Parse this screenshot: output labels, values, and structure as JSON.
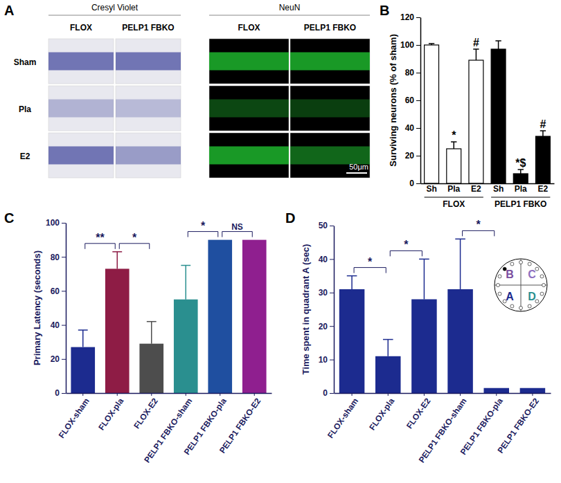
{
  "panel_labels": [
    "A",
    "B",
    "C",
    "D"
  ],
  "panel_a": {
    "headers": [
      "Cresyl Violet",
      "NeuN"
    ],
    "columns": [
      "FLOX",
      "PELP1 FBKO"
    ],
    "rows": [
      "Sham",
      "Pla",
      "E2"
    ],
    "scale_bar": "50μm"
  },
  "chart_data": [
    {
      "type": "bar",
      "y_label": "Surviving neurons (% of sham)",
      "categories": [
        "Sh",
        "Pla",
        "E2",
        "Sh",
        "Pla",
        "E2"
      ],
      "values": [
        100,
        25,
        89,
        97,
        7,
        34
      ],
      "errors": [
        1,
        5,
        8,
        6,
        3,
        4
      ],
      "colors": [
        "#ffffff",
        "#ffffff",
        "#ffffff",
        "#000000",
        "#000000",
        "#000000"
      ],
      "ylim": [
        0,
        120
      ],
      "yticks": [
        0,
        20,
        40,
        60,
        80,
        100,
        120
      ],
      "group_labels": [
        "FLOX",
        "PELP1 FBKO"
      ],
      "annotations": [
        {
          "category": 1,
          "text": "*"
        },
        {
          "category": 2,
          "text": "#"
        },
        {
          "category": 4,
          "text": "*$"
        },
        {
          "category": 5,
          "text": "#"
        }
      ]
    },
    {
      "type": "bar",
      "y_label": "Primary Latency  (seconds)",
      "categories": [
        "FLOX-sham",
        "FLOX-pla",
        "FLOX-E2",
        "PELP1 FBKO-sham",
        "PELP1 FBKO-pla",
        "PELP1 FBKO-E2"
      ],
      "values": [
        27,
        73,
        29,
        55,
        90,
        90
      ],
      "errors": [
        10,
        10,
        13,
        20,
        null,
        null
      ],
      "colors": [
        "#1c2b8f",
        "#8e1c45",
        "#4d4d4d",
        "#2a8f8f",
        "#1f4fa0",
        "#8f1f8f"
      ],
      "ylim": [
        0,
        100
      ],
      "yticks": [
        0,
        20,
        40,
        60,
        80,
        100
      ],
      "annotations": [
        {
          "from": 0,
          "to": 1,
          "text": "**"
        },
        {
          "from": 1,
          "to": 2,
          "text": "*"
        },
        {
          "from": 3,
          "to": 4,
          "text": "*"
        },
        {
          "from": 4,
          "to": 5,
          "text": "NS"
        }
      ]
    },
    {
      "type": "bar",
      "y_label": "Time spent in quadrant A (sec)",
      "categories": [
        "FLOX-sham",
        "FLOX-pla",
        "FLOX-E2",
        "PELP1 FBKO-sham",
        "PELP1 FBKO-pla",
        "PELP1 FBKO-E2"
      ],
      "values": [
        31,
        11,
        28,
        31,
        1.5,
        1.5
      ],
      "errors": [
        4,
        5,
        12,
        15,
        null,
        null
      ],
      "color": "#1c2b8f",
      "ylim": [
        0,
        50
      ],
      "yticks": [
        0,
        10,
        20,
        30,
        40,
        50
      ],
      "annotations": [
        {
          "from": 0,
          "to": 1,
          "text": "*"
        },
        {
          "from": 1,
          "to": 2,
          "text": "*"
        },
        {
          "from": 3,
          "to": 4,
          "text": "*"
        }
      ],
      "inset_labels": [
        "A",
        "B",
        "C",
        "D"
      ]
    }
  ]
}
